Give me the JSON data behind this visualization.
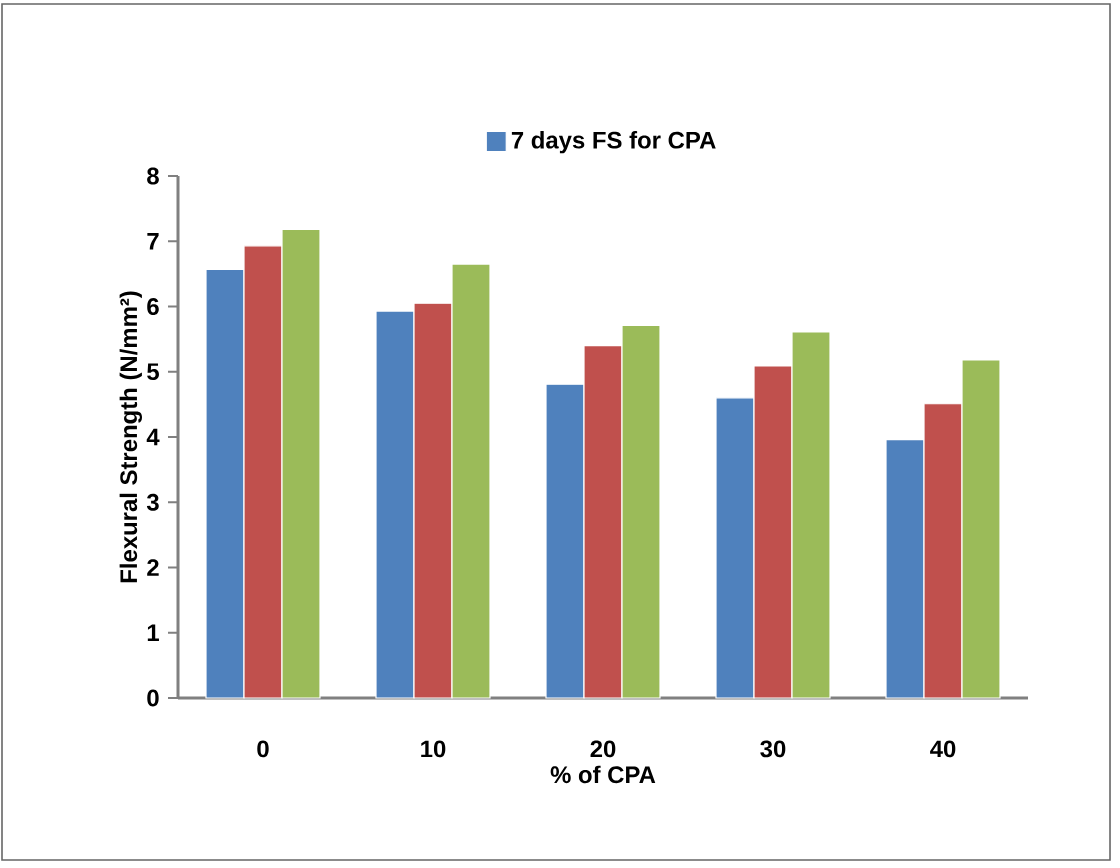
{
  "chart_data": {
    "type": "bar",
    "xlabel": "% of CPA",
    "ylabel": "Flexural Strength (N/mm²)",
    "categories": [
      "0",
      "10",
      "20",
      "30",
      "40"
    ],
    "series": [
      {
        "name": "7 days FS for CPA",
        "color": "#4f81bd",
        "values": [
          6.57,
          5.93,
          4.81,
          4.6,
          3.96
        ]
      },
      {
        "color": "#c0504d",
        "values": [
          6.93,
          6.05,
          5.4,
          5.09,
          4.51
        ]
      },
      {
        "color": "#9bbb59",
        "values": [
          7.18,
          6.65,
          5.71,
          5.61,
          5.18
        ]
      }
    ],
    "ylim": [
      0,
      8
    ],
    "yticks": [
      0,
      1,
      2,
      3,
      4,
      5,
      6,
      7,
      8
    ],
    "legend": "top",
    "grid": false
  }
}
